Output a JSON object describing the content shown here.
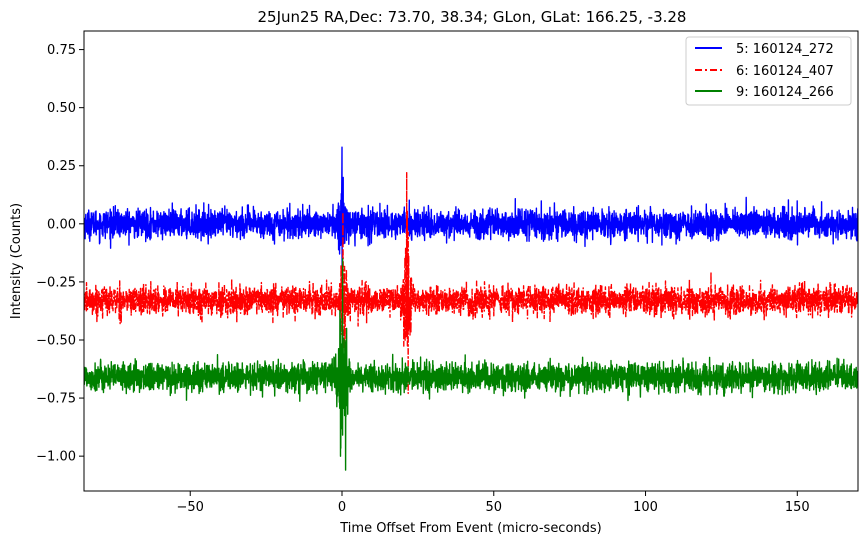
{
  "chart_data": {
    "type": "line",
    "title": "25Jun25 RA,Dec:   73.70,  38.34; GLon, GLat:  166.25,  -3.28",
    "xlabel": "Time Offset From Event (micro-seconds)",
    "ylabel": "Intensity (Counts)",
    "xlim": [
      -85,
      170
    ],
    "ylim": [
      -1.15,
      0.83
    ],
    "xticks": [
      -50,
      0,
      50,
      100,
      150
    ],
    "yticks": [
      0.75,
      0.5,
      0.25,
      0.0,
      -0.25,
      -0.5,
      -0.75,
      -1.0
    ],
    "xtick_labels": [
      "−50",
      "0",
      "50",
      "100",
      "150"
    ],
    "ytick_labels": [
      "0.75",
      "0.50",
      "0.25",
      "0.00",
      "−0.25",
      "−0.50",
      "−0.75",
      "−1.00"
    ],
    "legend_position": "upper-right",
    "series": [
      {
        "name": "5: 160124_272",
        "color": "#0000ff",
        "style": "solid",
        "baseline": 0.0,
        "noise": 0.03,
        "features": [
          {
            "x": -0.8,
            "value": -0.13
          },
          {
            "x": 0.0,
            "value": 0.33
          },
          {
            "x": 0.4,
            "value": 0.2
          }
        ]
      },
      {
        "name": "6: 160124_407",
        "color": "#ff0000",
        "style": "dashdot",
        "baseline": -0.33,
        "noise": 0.03,
        "features": [
          {
            "x": 0.3,
            "value": 0.05
          },
          {
            "x": 1.0,
            "value": -0.55
          },
          {
            "x": 21.3,
            "value": 0.22
          },
          {
            "x": 21.8,
            "value": -0.73
          }
        ]
      },
      {
        "name": "9: 160124_266",
        "color": "#008000",
        "style": "solid",
        "baseline": -0.66,
        "noise": 0.03,
        "features": [
          {
            "x": -0.5,
            "value": -1.0
          },
          {
            "x": 0.2,
            "value": -0.15
          },
          {
            "x": 1.2,
            "value": -1.06
          }
        ]
      }
    ]
  }
}
